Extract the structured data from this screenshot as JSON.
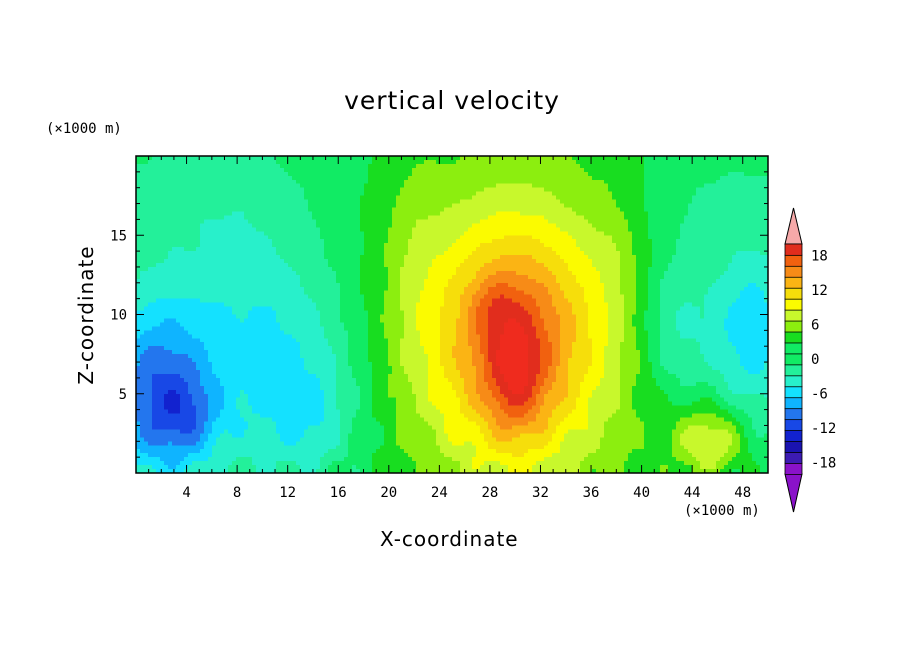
{
  "chart_data": {
    "type": "heatmap",
    "title": "vertical velocity",
    "xlabel": "X-coordinate",
    "ylabel": "Z-coordinate",
    "x_unit": "(×1000 m)",
    "y_unit": "(×1000 m)",
    "xlim": [
      0,
      50
    ],
    "ylim": [
      0,
      20
    ],
    "x_ticks": [
      4,
      8,
      12,
      16,
      20,
      24,
      28,
      32,
      36,
      40,
      44,
      48
    ],
    "y_ticks": [
      5,
      10,
      15
    ],
    "colorbar": {
      "levels": [
        -20,
        -18,
        -16,
        -14,
        -12,
        -10,
        -8,
        -6,
        -4,
        -2,
        0,
        2,
        4,
        6,
        8,
        10,
        12,
        14,
        16,
        18,
        20
      ],
      "tick_labels": [
        18,
        12,
        6,
        0,
        -6,
        -12,
        -18
      ],
      "colors": [
        "#8a12c9",
        "#3c1bb3",
        "#1a13b0",
        "#1222cf",
        "#1848e6",
        "#2376ee",
        "#0fb4ff",
        "#14e1ff",
        "#28f0cb",
        "#23f09a",
        "#11eb64",
        "#18dd20",
        "#8cee0f",
        "#c8f82c",
        "#fbfb00",
        "#f6de0b",
        "#fbb414",
        "#f78b17",
        "#f1610f",
        "#e12d1d",
        "#ef2b1e"
      ],
      "under_color": "#8a12c9",
      "over_color": "#f6a9a9"
    },
    "field": {
      "background": 0.5,
      "features": [
        {
          "x": 30,
          "z": 8.5,
          "sx": 4.5,
          "sz": 5.0,
          "amp": 10.0
        },
        {
          "x": 30,
          "z": 8.5,
          "sx": 9.0,
          "sz": 10.0,
          "amp": 6.5
        },
        {
          "x": 30,
          "z": 6.0,
          "sx": 1.6,
          "sz": 2.8,
          "amp": 5.5
        },
        {
          "x": 28.3,
          "z": 10.5,
          "sx": 1.2,
          "sz": 1.2,
          "amp": 2.5
        },
        {
          "x": 45.5,
          "z": 2.0,
          "sx": 2.0,
          "sz": 1.6,
          "amp": 7.0
        },
        {
          "x": 1.5,
          "z": 5.0,
          "sx": 3.0,
          "sz": 4.0,
          "amp": -9.0
        },
        {
          "x": 4,
          "z": 3.5,
          "sx": 1.8,
          "sz": 1.8,
          "amp": -4.0
        },
        {
          "x": 8,
          "z": 9.0,
          "sx": 5.0,
          "sz": 6.0,
          "amp": -3.5
        },
        {
          "x": 13,
          "z": 6.0,
          "sx": 4.0,
          "sz": 5.0,
          "amp": -3.5
        },
        {
          "x": 14,
          "z": 3.5,
          "sx": 2.0,
          "sz": 2.0,
          "amp": -2.5
        },
        {
          "x": 48.5,
          "z": 9.0,
          "sx": 2.5,
          "sz": 4.0,
          "amp": -6.5
        },
        {
          "x": 42.5,
          "z": 9.5,
          "sx": 2.0,
          "sz": 3.5,
          "amp": -4.5
        },
        {
          "x": 22,
          "z": 14.0,
          "sx": 1.5,
          "sz": 5.0,
          "amp": 1.5
        },
        {
          "x": 38,
          "z": 15.0,
          "sx": 1.5,
          "sz": 4.0,
          "amp": 1.0
        },
        {
          "x": 5,
          "z": 17.0,
          "sx": 6.0,
          "sz": 2.0,
          "amp": -1.0
        },
        {
          "x": 44,
          "z": 17.0,
          "sx": 5.0,
          "sz": 2.0,
          "amp": -1.5
        }
      ]
    }
  }
}
